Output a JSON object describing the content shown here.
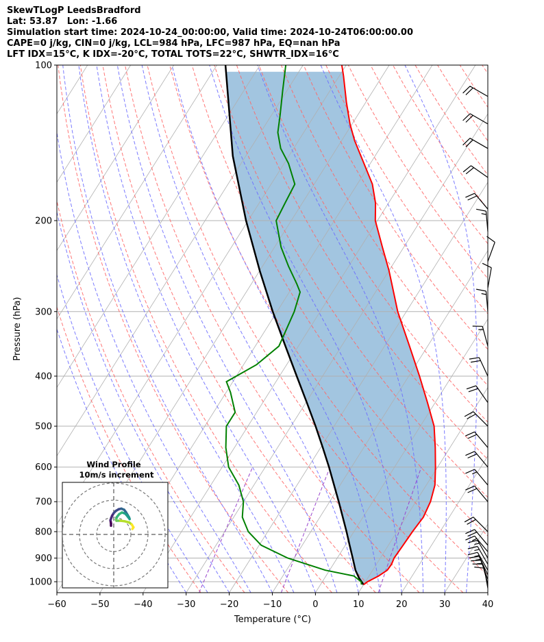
{
  "header": {
    "line1": "SkewTLogP LeedsBradford",
    "line2": "Lat: 53.87   Lon: -1.66",
    "line3": "Simulation start time: 2024-10-24_00:00:00, Valid time: 2024-10-24T06:00:00.00",
    "line4": "CAPE=0 j/kg, CIN=0 j/kg, LCL=984 hPa, LFC=987 hPa, EQ=nan hPa",
    "line5": "LFT IDX=15°C, K IDX=-20°C, TOTAL TOTS=22°C, SHWTR_IDX=16°C"
  },
  "chart_data": {
    "type": "skew-t log-p",
    "xlabel": "Temperature (°C)",
    "ylabel": "Pressure (hPa)",
    "xlim": [
      -60,
      40
    ],
    "ylim": [
      1050,
      100
    ],
    "x_ticks": [
      -60,
      -50,
      -40,
      -30,
      -20,
      -10,
      0,
      10,
      20,
      30,
      40
    ],
    "y_ticks": [
      100,
      200,
      300,
      400,
      500,
      600,
      700,
      800,
      900,
      1000
    ],
    "y_tick_labels": [
      "100",
      "200",
      "300",
      "400",
      "500",
      "600",
      "700",
      "800",
      "900",
      "1000"
    ],
    "x_tick_labels": [
      "−60",
      "−50",
      "−40",
      "−30",
      "−20",
      "−10",
      "0",
      "10",
      "20",
      "30",
      "40"
    ],
    "grid": true,
    "colors": {
      "temperature": "#ff0000",
      "dewpoint": "#008000",
      "parcel": "#000000",
      "shade": "#a2c5e0",
      "dry_adiabat": "#ff6666",
      "moist_adiabat": "#6b6bff",
      "mixing_ratio": "#9944cc",
      "isotherm": "#b0b0b0"
    },
    "temperature_profile": [
      {
        "p": 1013,
        "t": 10.0
      },
      {
        "p": 1000,
        "t": 10.5
      },
      {
        "p": 975,
        "t": 12.2
      },
      {
        "p": 950,
        "t": 13.4
      },
      {
        "p": 925,
        "t": 13.5
      },
      {
        "p": 900,
        "t": 13.2
      },
      {
        "p": 850,
        "t": 13.4
      },
      {
        "p": 800,
        "t": 13.6
      },
      {
        "p": 750,
        "t": 14.0
      },
      {
        "p": 700,
        "t": 13.4
      },
      {
        "p": 650,
        "t": 12.0
      },
      {
        "p": 600,
        "t": 9.5
      },
      {
        "p": 550,
        "t": 6.6
      },
      {
        "p": 500,
        "t": 3.2
      },
      {
        "p": 450,
        "t": -1.8
      },
      {
        "p": 400,
        "t": -7.5
      },
      {
        "p": 350,
        "t": -14.2
      },
      {
        "p": 300,
        "t": -22.0
      },
      {
        "p": 250,
        "t": -30.0
      },
      {
        "p": 225,
        "t": -35.0
      },
      {
        "p": 200,
        "t": -40.5
      },
      {
        "p": 185,
        "t": -43.0
      },
      {
        "p": 170,
        "t": -46.5
      },
      {
        "p": 155,
        "t": -51.5
      },
      {
        "p": 140,
        "t": -57.0
      },
      {
        "p": 130,
        "t": -60.5
      },
      {
        "p": 118,
        "t": -64.5
      },
      {
        "p": 105,
        "t": -69.0
      },
      {
        "p": 100,
        "t": -71.0
      }
    ],
    "dewpoint_profile": [
      {
        "p": 1013,
        "t": 9.5
      },
      {
        "p": 1000,
        "t": 9.0
      },
      {
        "p": 975,
        "t": 6.5
      },
      {
        "p": 950,
        "t": -1.0
      },
      {
        "p": 900,
        "t": -11.5
      },
      {
        "p": 850,
        "t": -19.5
      },
      {
        "p": 800,
        "t": -24.5
      },
      {
        "p": 750,
        "t": -28.0
      },
      {
        "p": 700,
        "t": -30.0
      },
      {
        "p": 650,
        "t": -33.5
      },
      {
        "p": 600,
        "t": -38.5
      },
      {
        "p": 550,
        "t": -42.0
      },
      {
        "p": 500,
        "t": -45.0
      },
      {
        "p": 470,
        "t": -45.0
      },
      {
        "p": 430,
        "t": -49.0
      },
      {
        "p": 410,
        "t": -51.5
      },
      {
        "p": 380,
        "t": -47.0
      },
      {
        "p": 350,
        "t": -44.5
      },
      {
        "p": 300,
        "t": -46.0
      },
      {
        "p": 275,
        "t": -47.5
      },
      {
        "p": 265,
        "t": -49.5
      },
      {
        "p": 245,
        "t": -54.0
      },
      {
        "p": 225,
        "t": -58.5
      },
      {
        "p": 200,
        "t": -63.5
      },
      {
        "p": 185,
        "t": -64.0
      },
      {
        "p": 170,
        "t": -64.5
      },
      {
        "p": 155,
        "t": -69.0
      },
      {
        "p": 145,
        "t": -73.0
      },
      {
        "p": 135,
        "t": -76.0
      },
      {
        "p": 125,
        "t": -78.0
      },
      {
        "p": 112,
        "t": -81.0
      },
      {
        "p": 100,
        "t": -84.0
      }
    ],
    "parcel_profile": [
      {
        "p": 1013,
        "t": 10.0
      },
      {
        "p": 984,
        "t": 8.0
      },
      {
        "p": 950,
        "t": 6.0
      },
      {
        "p": 900,
        "t": 3.6
      },
      {
        "p": 850,
        "t": 1.0
      },
      {
        "p": 800,
        "t": -1.7
      },
      {
        "p": 750,
        "t": -4.7
      },
      {
        "p": 700,
        "t": -7.9
      },
      {
        "p": 650,
        "t": -11.4
      },
      {
        "p": 600,
        "t": -15.2
      },
      {
        "p": 550,
        "t": -19.5
      },
      {
        "p": 500,
        "t": -24.3
      },
      {
        "p": 450,
        "t": -29.8
      },
      {
        "p": 400,
        "t": -36.0
      },
      {
        "p": 350,
        "t": -43.0
      },
      {
        "p": 300,
        "t": -51.0
      },
      {
        "p": 250,
        "t": -60.0
      },
      {
        "p": 200,
        "t": -70.5
      },
      {
        "p": 150,
        "t": -83.0
      },
      {
        "p": 100,
        "t": -98.0
      }
    ],
    "wind_barbs": [
      {
        "p": 1030,
        "speed_kt": 10,
        "dir": 350
      },
      {
        "p": 1010,
        "speed_kt": 10,
        "dir": 345
      },
      {
        "p": 990,
        "speed_kt": 15,
        "dir": 340
      },
      {
        "p": 970,
        "speed_kt": 15,
        "dir": 335
      },
      {
        "p": 950,
        "speed_kt": 15,
        "dir": 330
      },
      {
        "p": 925,
        "speed_kt": 15,
        "dir": 330
      },
      {
        "p": 900,
        "speed_kt": 15,
        "dir": 330
      },
      {
        "p": 875,
        "speed_kt": 15,
        "dir": 320
      },
      {
        "p": 850,
        "speed_kt": 20,
        "dir": 320
      },
      {
        "p": 800,
        "speed_kt": 20,
        "dir": 315
      },
      {
        "p": 700,
        "speed_kt": 20,
        "dir": 320
      },
      {
        "p": 650,
        "speed_kt": 15,
        "dir": 320
      },
      {
        "p": 600,
        "speed_kt": 20,
        "dir": 320
      },
      {
        "p": 550,
        "speed_kt": 20,
        "dir": 320
      },
      {
        "p": 500,
        "speed_kt": 20,
        "dir": 315
      },
      {
        "p": 450,
        "speed_kt": 20,
        "dir": 325
      },
      {
        "p": 400,
        "speed_kt": 20,
        "dir": 335
      },
      {
        "p": 350,
        "speed_kt": 15,
        "dir": 345
      },
      {
        "p": 300,
        "speed_kt": 15,
        "dir": 355
      },
      {
        "p": 270,
        "speed_kt": 10,
        "dir": 10
      },
      {
        "p": 240,
        "speed_kt": 10,
        "dir": 20
      },
      {
        "p": 210,
        "speed_kt": 15,
        "dir": 355
      },
      {
        "p": 190,
        "speed_kt": 20,
        "dir": 320
      },
      {
        "p": 165,
        "speed_kt": 20,
        "dir": 305
      },
      {
        "p": 145,
        "speed_kt": 20,
        "dir": 300
      },
      {
        "p": 130,
        "speed_kt": 20,
        "dir": 300
      },
      {
        "p": 115,
        "speed_kt": 20,
        "dir": 300
      }
    ],
    "inset": {
      "title": "Wind Profile",
      "subtitle": "10m/s increment",
      "hodograph": [
        [
          -0.5,
          1.6
        ],
        [
          -0.5,
          2.0
        ],
        [
          -0.6,
          2.6
        ],
        [
          -0.3,
          3.4
        ],
        [
          0.0,
          3.9
        ],
        [
          0.4,
          4.3
        ],
        [
          0.9,
          4.6
        ],
        [
          1.4,
          4.7
        ],
        [
          1.9,
          4.5
        ],
        [
          2.2,
          4.1
        ],
        [
          2.5,
          3.6
        ],
        [
          2.8,
          3.1
        ],
        [
          2.9,
          2.8
        ],
        [
          2.6,
          3.2
        ],
        [
          2.1,
          3.8
        ],
        [
          1.5,
          4.0
        ],
        [
          1.0,
          3.7
        ],
        [
          0.6,
          3.2
        ],
        [
          0.4,
          2.7
        ],
        [
          0.5,
          2.5
        ],
        [
          1.2,
          2.5
        ],
        [
          2.0,
          2.4
        ],
        [
          2.8,
          2.2
        ],
        [
          3.3,
          1.8
        ],
        [
          3.6,
          1.3
        ],
        [
          3.4,
          1.0
        ]
      ]
    }
  }
}
